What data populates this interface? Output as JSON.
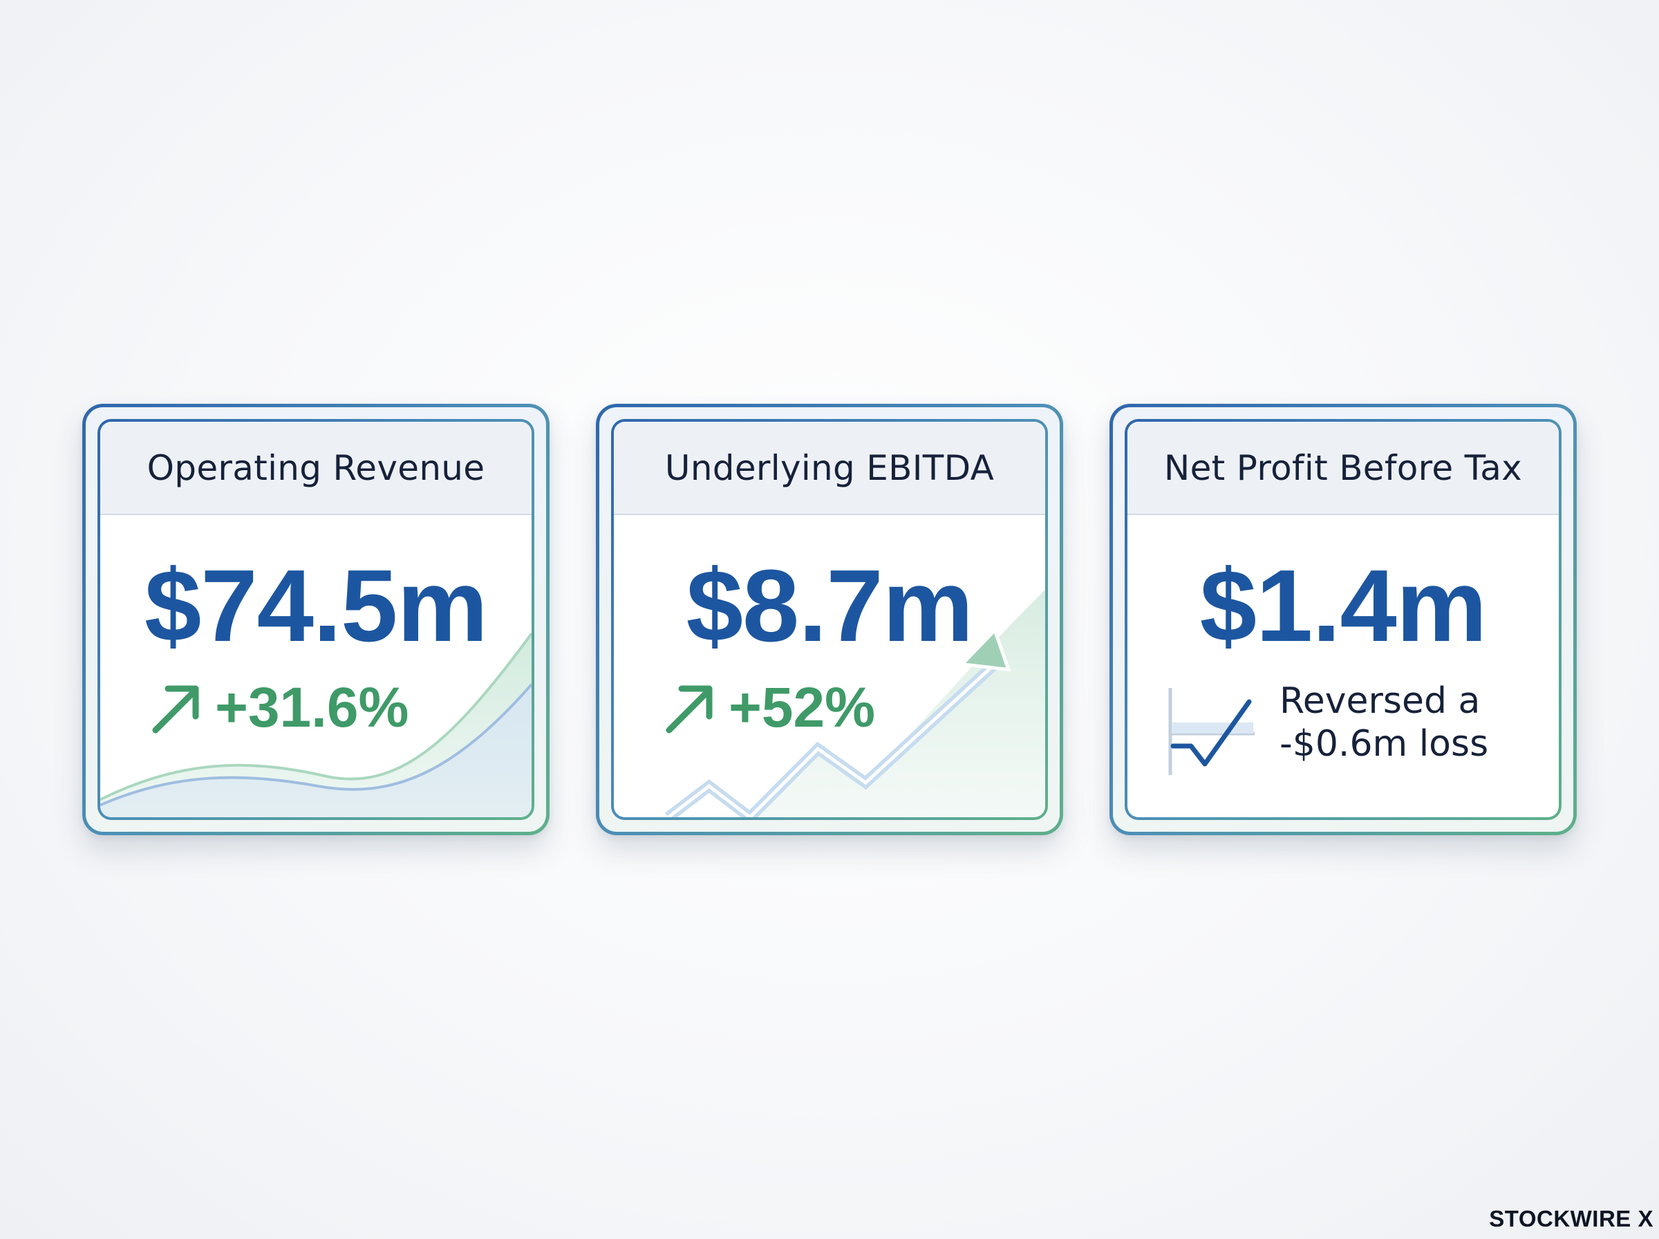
{
  "cards": [
    {
      "title": "Operating Revenue",
      "value": "$74.5m",
      "change": "+31.6%",
      "trend_icon": "arrow-up-right-icon"
    },
    {
      "title": "Underlying EBITDA",
      "value": "$8.7m",
      "change": "+52%",
      "trend_icon": "arrow-up-right-icon"
    },
    {
      "title": "Net Profit Before Tax",
      "value": "$1.4m",
      "note_line1": "Reversed a",
      "note_line2": "-$0.6m loss",
      "trend_icon": "loss-reversal-chart-icon"
    }
  ],
  "brand": "STOCKWIRE X",
  "colors": {
    "value_blue": "#1d56a0",
    "growth_green": "#3f9a68",
    "border_blue": "#2f66ad",
    "border_green": "#5fb08a"
  }
}
